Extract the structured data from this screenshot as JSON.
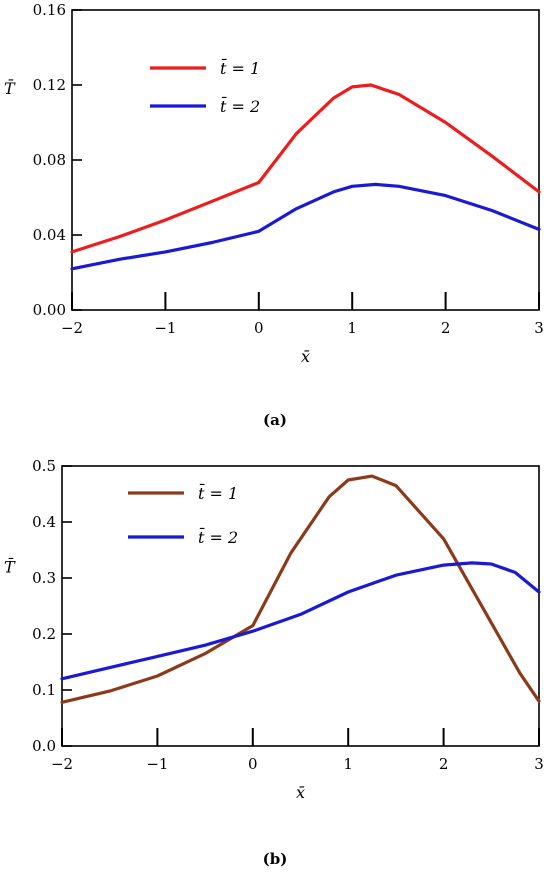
{
  "chart_data": [
    {
      "type": "line",
      "caption": "(a)",
      "xlabel": "x̄",
      "ylabel": "T̄",
      "xlim": [
        -2,
        3
      ],
      "ylim": [
        0,
        0.16
      ],
      "xticks": [
        -2,
        -1,
        0,
        1,
        2,
        3
      ],
      "yticks": [
        0.0,
        0.04,
        0.08,
        0.12,
        0.16
      ],
      "xtick_labels": [
        "−2",
        "−1",
        "0",
        "1",
        "2",
        "3"
      ],
      "ytick_labels": [
        "0.00",
        "0.04",
        "0.08",
        "0.12",
        "0.16"
      ],
      "grid": false,
      "legend_position": "top-left",
      "series": [
        {
          "name": "t̄ = 1",
          "color": "#ee1c1c",
          "x": [
            -2,
            -1.5,
            -1,
            -0.5,
            0,
            0.4,
            0.8,
            1.0,
            1.2,
            1.5,
            2.0,
            2.5,
            3.0
          ],
          "y": [
            0.031,
            0.039,
            0.048,
            0.058,
            0.068,
            0.094,
            0.113,
            0.119,
            0.12,
            0.115,
            0.1,
            0.082,
            0.063
          ]
        },
        {
          "name": "t̄ = 2",
          "color": "#1a1ad6",
          "x": [
            -2,
            -1.5,
            -1,
            -0.5,
            0,
            0.4,
            0.8,
            1.0,
            1.25,
            1.5,
            2.0,
            2.5,
            3.0
          ],
          "y": [
            0.022,
            0.027,
            0.031,
            0.036,
            0.042,
            0.054,
            0.063,
            0.066,
            0.067,
            0.066,
            0.061,
            0.053,
            0.043
          ]
        }
      ]
    },
    {
      "type": "line",
      "caption": "(b)",
      "xlabel": "x̄",
      "ylabel": "T̄",
      "xlim": [
        -2,
        3
      ],
      "ylim": [
        0,
        0.5
      ],
      "xticks": [
        -2,
        -1,
        0,
        1,
        2,
        3
      ],
      "yticks": [
        0.0,
        0.1,
        0.2,
        0.3,
        0.4,
        0.5
      ],
      "xtick_labels": [
        "−2",
        "−1",
        "0",
        "1",
        "2",
        "3"
      ],
      "ytick_labels": [
        "0.0",
        "0.1",
        "0.2",
        "0.3",
        "0.4",
        "0.5"
      ],
      "grid": false,
      "legend_position": "top-left",
      "series": [
        {
          "name": "t̄ = 1",
          "color": "#8b3a1a",
          "x": [
            -2,
            -1.5,
            -1,
            -0.5,
            0,
            0.4,
            0.8,
            1.0,
            1.25,
            1.5,
            2.0,
            2.5,
            2.8,
            3.0
          ],
          "y": [
            0.078,
            0.098,
            0.125,
            0.165,
            0.215,
            0.345,
            0.445,
            0.475,
            0.482,
            0.465,
            0.37,
            0.22,
            0.13,
            0.08
          ]
        },
        {
          "name": "t̄ = 2",
          "color": "#1a1ad6",
          "x": [
            -2,
            -1.5,
            -1,
            -0.5,
            0,
            0.5,
            1.0,
            1.5,
            2.0,
            2.3,
            2.5,
            2.75,
            3.0
          ],
          "y": [
            0.12,
            0.14,
            0.16,
            0.18,
            0.205,
            0.235,
            0.275,
            0.305,
            0.323,
            0.327,
            0.325,
            0.31,
            0.275
          ]
        }
      ]
    }
  ]
}
